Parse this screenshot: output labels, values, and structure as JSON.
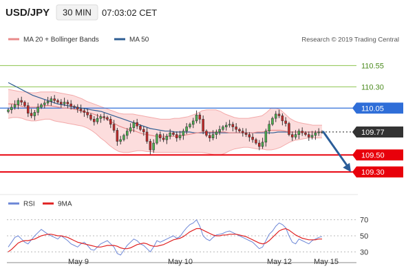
{
  "header": {
    "symbol": "USD/JPY",
    "timeframe": "30 MIN",
    "time": "07:03:02 CET"
  },
  "legend_top": {
    "ma20_label": "MA 20 + Bollinger Bands",
    "ma50_label": "MA 50",
    "ma20_color": "#e98a8a",
    "ma50_color": "#2e5d93"
  },
  "legend_bottom": {
    "rsi_label": "RSI",
    "ma9_label": "9MA",
    "rsi_color": "#6a85d6",
    "ma9_color": "#e02020"
  },
  "credit": "Research © 2019 Trading Central",
  "colors": {
    "support": "#e8000b",
    "resistance_pivot": "#2f6ed8",
    "target_green": "#8ac24a",
    "last_price_box": "#333333",
    "candle_up": "#4caf50",
    "candle_down": "#c62828",
    "band_fill": "#fbd2d2",
    "arrow": "#2b5d99"
  },
  "chart_data": {
    "type": "candlestick",
    "instrument": "USD/JPY",
    "interval": "30 MIN",
    "x_axis_dates": [
      "May 9",
      "May 10",
      "May 12",
      "May 15"
    ],
    "price_ylim": [
      109.14,
      110.69
    ],
    "levels": [
      {
        "label": "110.55",
        "value": 110.55,
        "kind": "target"
      },
      {
        "label": "110.30",
        "value": 110.3,
        "kind": "target"
      },
      {
        "label": "110.05",
        "value": 110.05,
        "kind": "pivot"
      },
      {
        "label": "109.77",
        "value": 109.77,
        "kind": "last"
      },
      {
        "label": "109.50",
        "value": 109.5,
        "kind": "support"
      },
      {
        "label": "109.30",
        "value": 109.3,
        "kind": "support"
      }
    ],
    "close_series": [
      110.03,
      110.06,
      110.09,
      110.14,
      110.12,
      110.08,
      109.99,
      109.96,
      110.0,
      110.06,
      110.09,
      110.11,
      110.13,
      110.16,
      110.14,
      110.12,
      110.1,
      110.12,
      110.1,
      110.07,
      110.06,
      110.04,
      110.02,
      110.0,
      109.97,
      109.92,
      109.89,
      109.93,
      109.95,
      109.94,
      109.92,
      109.86,
      109.79,
      109.66,
      109.68,
      109.73,
      109.78,
      109.82,
      109.88,
      109.84,
      109.8,
      109.77,
      109.66,
      109.56,
      109.64,
      109.74,
      109.7,
      109.68,
      109.72,
      109.76,
      109.74,
      109.7,
      109.73,
      109.78,
      109.83,
      109.86,
      109.9,
      109.97,
      109.92,
      109.78,
      109.73,
      109.7,
      109.74,
      109.77,
      109.8,
      109.83,
      109.85,
      109.86,
      109.83,
      109.8,
      109.78,
      109.76,
      109.74,
      109.71,
      109.68,
      109.64,
      109.6,
      109.65,
      109.78,
      109.86,
      109.93,
      109.98,
      109.96,
      109.9,
      109.87,
      109.74,
      109.71,
      109.74,
      109.78,
      109.76,
      109.74,
      109.71,
      109.73,
      109.76,
      109.77,
      109.77
    ],
    "ma20_series": [
      110.1,
      110.1,
      110.09,
      110.07,
      110.06,
      110.06,
      110.06,
      110.07,
      110.08,
      110.08,
      110.07,
      110.06,
      110.05,
      110.05,
      110.04,
      110.03,
      110.01,
      110.0,
      109.99,
      109.97,
      109.95,
      109.93,
      109.9,
      109.87,
      109.84,
      109.82,
      109.8,
      109.79,
      109.77,
      109.75,
      109.74,
      109.73,
      109.72,
      109.72,
      109.72,
      109.72,
      109.72,
      109.72,
      109.73,
      109.74,
      109.75,
      109.76,
      109.77,
      109.77,
      109.77,
      109.77,
      109.77,
      109.77,
      109.76,
      109.76,
      109.76,
      109.76,
      109.76,
      109.76,
      109.77,
      109.77,
      109.78,
      109.79,
      109.79,
      109.79,
      109.78,
      109.77,
      109.77,
      109.77,
      109.77,
      109.77,
      109.77,
      109.77,
      109.77
    ],
    "band_upper": [
      110.27,
      110.26,
      110.25,
      110.24,
      110.24,
      110.23,
      110.23,
      110.24,
      110.24,
      110.24,
      110.24,
      110.23,
      110.22,
      110.21,
      110.2,
      110.18,
      110.16,
      110.13,
      110.11,
      110.09,
      110.07,
      110.05,
      110.03,
      110.01,
      109.99,
      109.98,
      109.98,
      109.98,
      109.97,
      109.96,
      109.95,
      109.94,
      109.93,
      109.92,
      109.92,
      109.92,
      109.93,
      109.93,
      109.94,
      109.95,
      109.97,
      109.99,
      110.02,
      110.03,
      110.03,
      110.03,
      110.01,
      109.98,
      109.96,
      109.94,
      109.93,
      109.93,
      109.93,
      109.94,
      109.95,
      109.96,
      110.0,
      110.05,
      110.05,
      110.03,
      109.98,
      109.93,
      109.9,
      109.88,
      109.87,
      109.86,
      109.85,
      109.85,
      109.85
    ],
    "band_lower": [
      109.93,
      109.94,
      109.94,
      109.93,
      109.91,
      109.9,
      109.9,
      109.91,
      109.92,
      109.92,
      109.9,
      109.89,
      109.88,
      109.87,
      109.86,
      109.85,
      109.84,
      109.82,
      109.79,
      109.75,
      109.7,
      109.66,
      109.61,
      109.57,
      109.54,
      109.53,
      109.53,
      109.54,
      109.55,
      109.55,
      109.54,
      109.54,
      109.53,
      109.53,
      109.53,
      109.53,
      109.53,
      109.53,
      109.53,
      109.53,
      109.53,
      109.53,
      109.53,
      109.52,
      109.51,
      109.5,
      109.5,
      109.52,
      109.55,
      109.57,
      109.58,
      109.59,
      109.59,
      109.58,
      109.57,
      109.57,
      109.56,
      109.56,
      109.57,
      109.59,
      109.62,
      109.65,
      109.67,
      109.68,
      109.69,
      109.7,
      109.7,
      109.7,
      109.7
    ],
    "ma50_series": [
      110.35,
      110.32,
      110.29,
      110.26,
      110.23,
      110.2,
      110.18,
      110.16,
      110.14,
      110.12,
      110.1,
      110.09,
      110.08,
      110.07,
      110.06,
      110.05,
      110.04,
      110.03,
      110.02,
      110.01,
      109.99,
      109.97,
      109.95,
      109.93,
      109.91,
      109.89,
      109.87,
      109.85,
      109.83,
      109.81,
      109.8,
      109.79,
      109.78,
      109.78,
      109.77,
      109.77,
      109.77,
      109.77,
      109.76,
      109.76,
      109.76,
      109.76,
      109.76,
      109.76,
      109.76,
      109.76,
      109.76,
      109.76,
      109.76,
      109.76,
      109.76,
      109.76,
      109.76,
      109.76,
      109.76,
      109.77,
      109.77,
      109.77,
      109.77,
      109.77,
      109.77,
      109.77,
      109.77,
      109.77,
      109.77
    ],
    "forecast_arrow": {
      "from": 109.77,
      "to": 109.3
    },
    "rsi": {
      "ylim": [
        20,
        80
      ],
      "ticks": [
        30,
        50,
        70
      ],
      "rsi_series": [
        36,
        42,
        48,
        50,
        46,
        42,
        40,
        45,
        50,
        54,
        58,
        55,
        52,
        50,
        48,
        46,
        50,
        47,
        44,
        40,
        38,
        36,
        40,
        42,
        38,
        33,
        32,
        36,
        40,
        42,
        44,
        40,
        36,
        28,
        26,
        32,
        38,
        42,
        46,
        44,
        40,
        38,
        34,
        30,
        36,
        44,
        42,
        44,
        46,
        48,
        50,
        47,
        49,
        55,
        60,
        64,
        66,
        70,
        62,
        50,
        46,
        44,
        48,
        51,
        52,
        53,
        55,
        56,
        54,
        52,
        50,
        48,
        46,
        44,
        42,
        38,
        34,
        36,
        44,
        52,
        56,
        62,
        66,
        64,
        60,
        50,
        42,
        40,
        46,
        44,
        42,
        40,
        44,
        46,
        48,
        49
      ],
      "ma9_series": [
        30,
        33,
        37,
        41,
        43,
        44,
        44,
        45,
        46,
        48,
        50,
        51,
        52,
        52,
        51,
        50,
        50,
        49,
        48,
        46,
        44,
        42,
        41,
        40,
        39,
        38,
        37,
        36,
        36,
        37,
        38,
        38,
        38,
        37,
        35,
        34,
        34,
        35,
        37,
        39,
        40,
        41,
        40,
        38,
        37,
        37,
        38,
        39,
        41,
        43,
        45,
        46,
        47,
        49,
        52,
        55,
        57,
        59,
        59,
        57,
        55,
        53,
        51,
        50,
        50,
        51,
        51,
        52,
        52,
        52,
        51,
        50,
        49,
        47,
        45,
        43,
        41,
        40,
        41,
        44,
        48,
        52,
        56,
        58,
        59,
        57,
        54,
        51,
        49,
        47,
        46,
        45,
        45,
        45,
        46,
        46
      ]
    }
  }
}
